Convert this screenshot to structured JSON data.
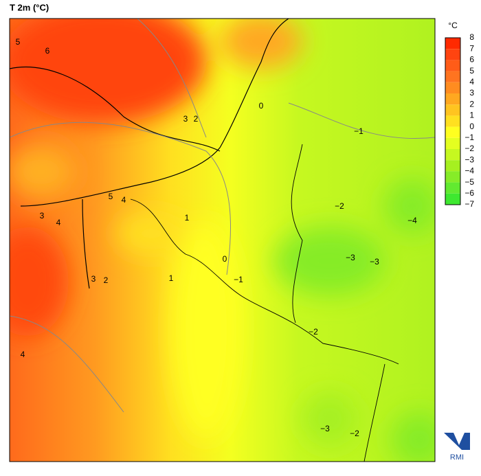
{
  "title": "T 2m (°C)",
  "legend": {
    "unit": "°C",
    "labels": [
      "8",
      "7",
      "6",
      "5",
      "4",
      "3",
      "2",
      "1",
      "0",
      "−1",
      "−2",
      "−3",
      "−4",
      "−5",
      "−6",
      "−7"
    ],
    "colors": [
      "#ff2a00",
      "#ff4410",
      "#ff5c18",
      "#ff7420",
      "#ff8c20",
      "#ffa820",
      "#ffc420",
      "#ffe020",
      "#ffff20",
      "#e4ff20",
      "#c6f820",
      "#a6f020",
      "#86ec28",
      "#62ea30",
      "#3ee830"
    ]
  },
  "contour_labels": [
    "5",
    "6",
    "3",
    "2",
    "0",
    "−1",
    "5",
    "4",
    "3",
    "4",
    "1",
    "−2",
    "−4",
    "0",
    "−3",
    "−3",
    "3",
    "2",
    "1",
    "−1",
    "−2",
    "4",
    "−3",
    "−2"
  ],
  "logo": "RMI"
}
